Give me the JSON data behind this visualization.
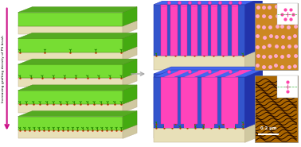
{
  "bg_color": "#ffffff",
  "arrow_color": "#cc1188",
  "arrow_label": "Increasing grafting density of PS brush",
  "scale_bar_text": "0.2 μm",
  "slab_green_light": "#77dd33",
  "slab_green_dark": "#55aa22",
  "slab_green_side": "#44aa11",
  "slab_beige": "#e8e0b8",
  "slab_beige_side": "#d0c8a0",
  "cylinder_color": "#ff44bb",
  "matrix_blue": "#3355cc",
  "matrix_blue_top": "#4466ee",
  "matrix_blue_side": "#2233aa",
  "lamellar_pink": "#ff44bb",
  "lamellar_blue": "#3355cc",
  "afm_top_color": "#cc8822",
  "afm_bot_color": "#aa6600",
  "dot_color": "#ffaacc",
  "fingerprint_color": "#220800"
}
